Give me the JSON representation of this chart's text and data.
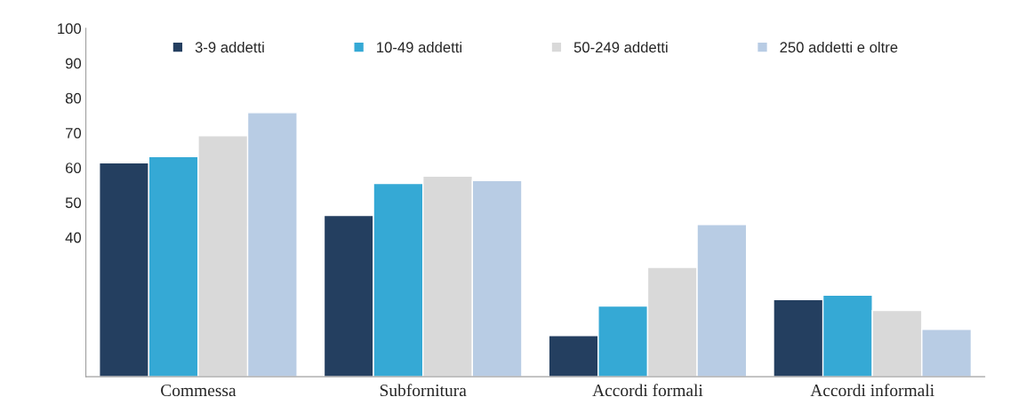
{
  "chart_data": {
    "type": "bar",
    "categories": [
      "Commessa",
      "Subfornitura",
      "Accordi formali",
      "Accordi informali"
    ],
    "series": [
      {
        "name": "3-9 addetti",
        "color": "#243f60",
        "values": [
          61.4,
          46.3,
          11.8,
          22.1
        ]
      },
      {
        "name": "10-49 addetti",
        "color": "#35a9d5",
        "values": [
          63.2,
          55.5,
          20.3,
          23.4
        ]
      },
      {
        "name": "50-249 addetti",
        "color": "#d9d9d9",
        "values": [
          69.2,
          57.6,
          31.4,
          19.0
        ]
      },
      {
        "name": "250 addetti e oltre",
        "color": "#b8cce4",
        "values": [
          75.8,
          56.3,
          43.7,
          13.6
        ]
      }
    ],
    "ylim": [
      0,
      100
    ],
    "yticks": [
      40,
      50,
      60,
      70,
      80,
      90,
      100
    ],
    "grid": false,
    "legend": "top"
  }
}
